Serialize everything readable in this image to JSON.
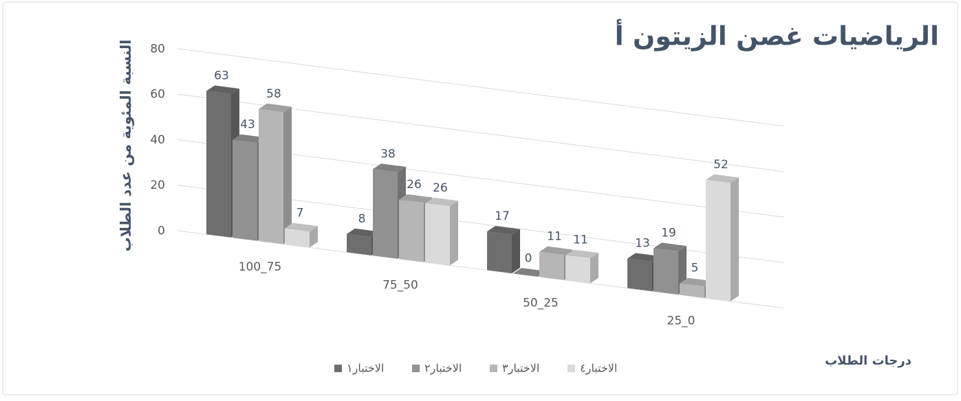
{
  "chart_data": {
    "type": "bar3d",
    "title": "الرياضيات غصن الزيتون أ",
    "y_label": "النسبة المئوية من عدد الطلاب",
    "x_label": "درجات الطلاب",
    "categories": [
      "100_75",
      "75_50",
      "50_25",
      "25_0"
    ],
    "series": [
      {
        "name": "الاختبار١",
        "color": "#6e6e6e",
        "values": [
          63,
          8,
          17,
          13
        ]
      },
      {
        "name": "الاختبار٢",
        "color": "#919191",
        "values": [
          43,
          38,
          0,
          19
        ]
      },
      {
        "name": "الاختبار٣",
        "color": "#b6b6b6",
        "values": [
          58,
          26,
          11,
          5
        ]
      },
      {
        "name": "الاختبار٤",
        "color": "#dadada",
        "values": [
          7,
          26,
          11,
          52
        ]
      }
    ],
    "ylim": [
      0,
      80
    ],
    "yticks": [
      0,
      20,
      40,
      60,
      80
    ],
    "grid": true
  }
}
